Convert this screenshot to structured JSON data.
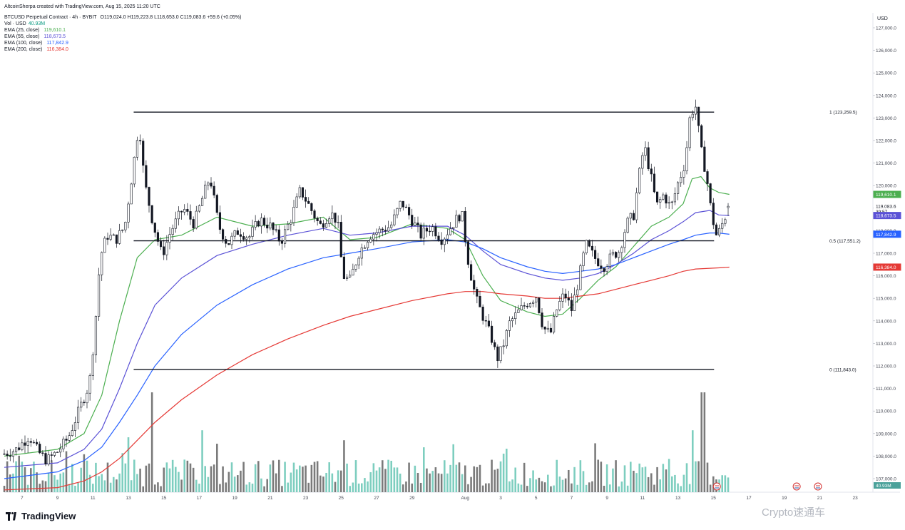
{
  "header": {
    "author": "AltcoinSherpa created with TradingView.com, Aug 15, 2025 11:20 UTC",
    "symbol": "BTCUSD Perpetual Contract · 4h · BYBIT",
    "ohlc": "O119,024.0 H119,223.8 L118,653.0 C119,083.6 +59.6 (+0.05%)",
    "volume_label": "Vol · USD",
    "volume_value": "40.93M",
    "indicators": [
      {
        "label": "EMA (25, close)",
        "value": "119,610.1",
        "color": "#4caf50"
      },
      {
        "label": "EMA (55, close)",
        "value": "118,673.5",
        "color": "#5b52d6"
      },
      {
        "label": "EMA (100, close)",
        "value": "117,842.9",
        "color": "#2962ff"
      },
      {
        "label": "EMA (200, close)",
        "value": "116,384.0",
        "color": "#e53935"
      }
    ]
  },
  "footer": {
    "logo_text": "TradingView",
    "watermark": "Crypto速通车"
  },
  "chart_data": {
    "type": "candlestick",
    "currency_label": "USD",
    "y_axis": {
      "min": 106500,
      "max": 127500,
      "ticks": [
        107000,
        108000,
        109000,
        110000,
        111000,
        112000,
        113000,
        114000,
        115000,
        116000,
        117000,
        118000,
        119000,
        120000,
        121000,
        122000,
        123000,
        124000,
        125000,
        126000,
        127000
      ]
    },
    "y_tick_labels": [
      "107,000.0",
      "108,000.0",
      "109,000.0",
      "110,000.0",
      "111,000.0",
      "112,000.0",
      "113,000.0",
      "114,000.0",
      "115,000.0",
      "116,000.0",
      "117,000.0",
      "118,000.0",
      "119,000.0",
      "120,000.0",
      "121,000.0",
      "122,000.0",
      "123,000.0",
      "124,000.0",
      "125,000.0",
      "126,000.0",
      "127,000.0"
    ],
    "x_labels": [
      {
        "day": 7,
        "label": "7"
      },
      {
        "day": 9,
        "label": "9"
      },
      {
        "day": 11,
        "label": "11"
      },
      {
        "day": 13,
        "label": "13"
      },
      {
        "day": 15,
        "label": "15"
      },
      {
        "day": 17,
        "label": "17"
      },
      {
        "day": 19,
        "label": "19"
      },
      {
        "day": 21,
        "label": "21"
      },
      {
        "day": 23,
        "label": "23"
      },
      {
        "day": 25,
        "label": "25"
      },
      {
        "day": 27,
        "label": "27"
      },
      {
        "day": 29,
        "label": "29"
      },
      {
        "day": 32,
        "label": "Aug"
      },
      {
        "day": 34,
        "label": "3"
      },
      {
        "day": 36,
        "label": "5"
      },
      {
        "day": 38,
        "label": "7"
      },
      {
        "day": 40,
        "label": "9"
      },
      {
        "day": 42,
        "label": "11"
      },
      {
        "day": 44,
        "label": "13"
      },
      {
        "day": 46,
        "label": "15"
      },
      {
        "day": 48,
        "label": "17"
      },
      {
        "day": 50,
        "label": "19"
      },
      {
        "day": 52,
        "label": "21"
      },
      {
        "day": 54,
        "label": "23"
      }
    ],
    "x_range_days": [
      6.0,
      55.0
    ],
    "fib_levels": [
      {
        "ratio": "1",
        "price": 123259.5,
        "label": "1 (123,259.5)",
        "from_day": 13.3,
        "to_day": 46.0
      },
      {
        "ratio": "0.5",
        "price": 117551.2,
        "label": "0.5 (117,551.2)",
        "from_day": 13.3,
        "to_day": 46.0
      },
      {
        "ratio": "0",
        "price": 111843.0,
        "label": "0 (111,843.0)",
        "from_day": 13.3,
        "to_day": 46.0
      }
    ],
    "price_path": [
      [
        6.0,
        108100
      ],
      [
        6.7,
        108300
      ],
      [
        7.4,
        108900
      ],
      [
        7.9,
        108200
      ],
      [
        8.4,
        107800
      ],
      [
        9.0,
        108200
      ],
      [
        9.6,
        108800
      ],
      [
        10.2,
        110000
      ],
      [
        10.8,
        111200
      ],
      [
        11.1,
        113500
      ],
      [
        11.4,
        116800
      ],
      [
        11.8,
        117800
      ],
      [
        12.3,
        117600
      ],
      [
        12.8,
        118200
      ],
      [
        13.3,
        121000
      ],
      [
        13.6,
        122800
      ],
      [
        13.9,
        120200
      ],
      [
        14.4,
        118300
      ],
      [
        14.9,
        116900
      ],
      [
        15.4,
        118000
      ],
      [
        16.1,
        119000
      ],
      [
        16.7,
        118300
      ],
      [
        17.2,
        119500
      ],
      [
        17.6,
        120400
      ],
      [
        18.1,
        118200
      ],
      [
        18.6,
        117400
      ],
      [
        19.2,
        118000
      ],
      [
        19.8,
        117700
      ],
      [
        20.4,
        118500
      ],
      [
        21.0,
        118200
      ],
      [
        21.6,
        117500
      ],
      [
        22.2,
        118600
      ],
      [
        22.7,
        119800
      ],
      [
        23.2,
        119100
      ],
      [
        23.8,
        118200
      ],
      [
        24.4,
        118800
      ],
      [
        24.8,
        118400
      ],
      [
        25.1,
        116000
      ],
      [
        25.5,
        115800
      ],
      [
        26.0,
        117000
      ],
      [
        26.6,
        117800
      ],
      [
        27.2,
        118000
      ],
      [
        27.8,
        118200
      ],
      [
        28.4,
        119300
      ],
      [
        28.9,
        118600
      ],
      [
        29.5,
        117800
      ],
      [
        30.1,
        118200
      ],
      [
        30.7,
        117600
      ],
      [
        31.3,
        118300
      ],
      [
        31.8,
        118800
      ],
      [
        32.2,
        116500
      ],
      [
        32.6,
        115000
      ],
      [
        33.0,
        114200
      ],
      [
        33.5,
        113200
      ],
      [
        33.8,
        112300
      ],
      [
        34.1,
        112800
      ],
      [
        34.5,
        113900
      ],
      [
        35.0,
        114400
      ],
      [
        35.5,
        114800
      ],
      [
        36.0,
        115100
      ],
      [
        36.4,
        113700
      ],
      [
        36.8,
        113400
      ],
      [
        37.2,
        114600
      ],
      [
        37.6,
        115200
      ],
      [
        38.0,
        114500
      ],
      [
        38.4,
        115800
      ],
      [
        38.8,
        117400
      ],
      [
        39.3,
        116800
      ],
      [
        39.8,
        116400
      ],
      [
        40.3,
        116900
      ],
      [
        40.7,
        117100
      ],
      [
        41.1,
        118300
      ],
      [
        41.5,
        118700
      ],
      [
        41.8,
        120400
      ],
      [
        42.1,
        121800
      ],
      [
        42.4,
        120700
      ],
      [
        42.8,
        119100
      ],
      [
        43.2,
        119600
      ],
      [
        43.6,
        119000
      ],
      [
        44.0,
        120100
      ],
      [
        44.4,
        121000
      ],
      [
        44.7,
        123200
      ],
      [
        45.0,
        123500
      ],
      [
        45.3,
        121600
      ],
      [
        45.6,
        120500
      ],
      [
        45.9,
        118700
      ],
      [
        46.2,
        117700
      ],
      [
        46.5,
        118300
      ],
      [
        46.9,
        119083
      ]
    ],
    "ema_series": [
      {
        "name": "EMA (25, close)",
        "color": "#4caf50",
        "points": [
          [
            6.0,
            108000
          ],
          [
            9.0,
            108300
          ],
          [
            10.5,
            109000
          ],
          [
            11.5,
            110700
          ],
          [
            12.5,
            114000
          ],
          [
            13.5,
            116800
          ],
          [
            14.5,
            117600
          ],
          [
            16.0,
            117800
          ],
          [
            18.0,
            118600
          ],
          [
            20.0,
            118200
          ],
          [
            22.0,
            118300
          ],
          [
            24.0,
            118600
          ],
          [
            25.5,
            117600
          ],
          [
            27.0,
            117700
          ],
          [
            29.0,
            118300
          ],
          [
            31.0,
            118100
          ],
          [
            32.0,
            117600
          ],
          [
            33.0,
            116000
          ],
          [
            34.0,
            114900
          ],
          [
            35.5,
            114400
          ],
          [
            36.5,
            114200
          ],
          [
            37.5,
            114300
          ],
          [
            38.5,
            115000
          ],
          [
            39.5,
            115800
          ],
          [
            40.5,
            116400
          ],
          [
            41.5,
            117300
          ],
          [
            42.5,
            118200
          ],
          [
            43.5,
            118600
          ],
          [
            44.3,
            119200
          ],
          [
            44.8,
            120300
          ],
          [
            45.3,
            120400
          ],
          [
            45.8,
            119900
          ],
          [
            46.3,
            119700
          ],
          [
            46.9,
            119610
          ]
        ]
      },
      {
        "name": "EMA (55, close)",
        "color": "#5b52d6",
        "points": [
          [
            6.0,
            107500
          ],
          [
            9.0,
            107700
          ],
          [
            10.5,
            108300
          ],
          [
            11.5,
            109200
          ],
          [
            12.5,
            111000
          ],
          [
            13.5,
            113000
          ],
          [
            14.5,
            114700
          ],
          [
            16.0,
            115900
          ],
          [
            18.0,
            116900
          ],
          [
            20.0,
            117400
          ],
          [
            22.0,
            117800
          ],
          [
            24.0,
            118100
          ],
          [
            25.5,
            117800
          ],
          [
            27.0,
            117900
          ],
          [
            29.0,
            118200
          ],
          [
            31.0,
            118200
          ],
          [
            32.0,
            117800
          ],
          [
            33.0,
            117100
          ],
          [
            34.0,
            116500
          ],
          [
            35.5,
            116100
          ],
          [
            36.5,
            115900
          ],
          [
            37.5,
            115800
          ],
          [
            38.5,
            115900
          ],
          [
            39.5,
            116100
          ],
          [
            40.5,
            116500
          ],
          [
            41.5,
            117000
          ],
          [
            42.5,
            117600
          ],
          [
            43.5,
            118000
          ],
          [
            44.3,
            118400
          ],
          [
            45.0,
            118800
          ],
          [
            45.8,
            118900
          ],
          [
            46.3,
            118700
          ],
          [
            46.9,
            118673
          ]
        ]
      },
      {
        "name": "EMA (100, close)",
        "color": "#2962ff",
        "points": [
          [
            6.0,
            107000
          ],
          [
            9.0,
            107300
          ],
          [
            10.5,
            107800
          ],
          [
            11.5,
            108400
          ],
          [
            12.5,
            109500
          ],
          [
            13.5,
            110700
          ],
          [
            14.5,
            112000
          ],
          [
            16.0,
            113400
          ],
          [
            18.0,
            114700
          ],
          [
            20.0,
            115600
          ],
          [
            22.0,
            116300
          ],
          [
            24.0,
            116800
          ],
          [
            25.5,
            117000
          ],
          [
            27.0,
            117200
          ],
          [
            29.0,
            117500
          ],
          [
            31.0,
            117600
          ],
          [
            32.0,
            117500
          ],
          [
            33.0,
            117200
          ],
          [
            34.0,
            116800
          ],
          [
            35.5,
            116400
          ],
          [
            36.5,
            116200
          ],
          [
            37.5,
            116100
          ],
          [
            38.5,
            116200
          ],
          [
            39.5,
            116300
          ],
          [
            40.5,
            116500
          ],
          [
            41.5,
            116800
          ],
          [
            42.5,
            117100
          ],
          [
            43.5,
            117400
          ],
          [
            44.3,
            117600
          ],
          [
            45.0,
            117800
          ],
          [
            45.8,
            117900
          ],
          [
            46.3,
            117900
          ],
          [
            46.9,
            117842
          ]
        ]
      },
      {
        "name": "EMA (200, close)",
        "color": "#e53935",
        "points": [
          [
            6.0,
            106500
          ],
          [
            9.0,
            106600
          ],
          [
            10.5,
            106900
          ],
          [
            11.5,
            107300
          ],
          [
            12.5,
            107900
          ],
          [
            13.5,
            108700
          ],
          [
            14.5,
            109500
          ],
          [
            16.0,
            110500
          ],
          [
            18.0,
            111600
          ],
          [
            20.0,
            112500
          ],
          [
            22.0,
            113200
          ],
          [
            24.0,
            113800
          ],
          [
            25.5,
            114200
          ],
          [
            27.0,
            114500
          ],
          [
            29.0,
            114900
          ],
          [
            31.0,
            115200
          ],
          [
            32.0,
            115300
          ],
          [
            33.0,
            115300
          ],
          [
            34.0,
            115200
          ],
          [
            35.5,
            115100
          ],
          [
            36.5,
            115000
          ],
          [
            37.5,
            115000
          ],
          [
            38.5,
            115100
          ],
          [
            39.5,
            115200
          ],
          [
            40.5,
            115400
          ],
          [
            41.5,
            115600
          ],
          [
            42.5,
            115800
          ],
          [
            43.5,
            116000
          ],
          [
            44.3,
            116200
          ],
          [
            45.0,
            116300
          ],
          [
            46.3,
            116350
          ],
          [
            46.9,
            116384
          ]
        ]
      }
    ],
    "price_tags": [
      {
        "price": 119610.1,
        "text": "119,610.1",
        "color": "#4caf50",
        "text_color": "#ffffff"
      },
      {
        "price": 119083.6,
        "text": "119,083.6",
        "color": "#ffffff",
        "text_color": "#131722"
      },
      {
        "price": 118853,
        "text": "39:57",
        "color": "#ffffff",
        "text_color": "#131722"
      },
      {
        "price": 118673.5,
        "text": "118,673.5",
        "color": "#5b52d6",
        "text_color": "#ffffff"
      },
      {
        "price": 117842.9,
        "text": "117,842.9",
        "color": "#2962ff",
        "text_color": "#ffffff"
      },
      {
        "price": 116384.0,
        "text": "116,384.0",
        "color": "#e53935",
        "text_color": "#ffffff"
      }
    ],
    "volume": {
      "last_value": "40.93M",
      "spike_days": [
        [
          14.3,
          1.0
        ],
        [
          17.2,
          0.62
        ],
        [
          25.2,
          0.52
        ],
        [
          31.4,
          0.48
        ],
        [
          45.4,
          1.0
        ],
        [
          44.8,
          0.62
        ],
        [
          10.5,
          0.38
        ],
        [
          13.0,
          0.55
        ]
      ]
    },
    "colors": {
      "up": "#ffffff",
      "down": "#131722",
      "wick": "#131722",
      "vol_up": "#6fc9b8",
      "vol_down": "#6b6b6b",
      "fib_line": "#131722"
    }
  }
}
